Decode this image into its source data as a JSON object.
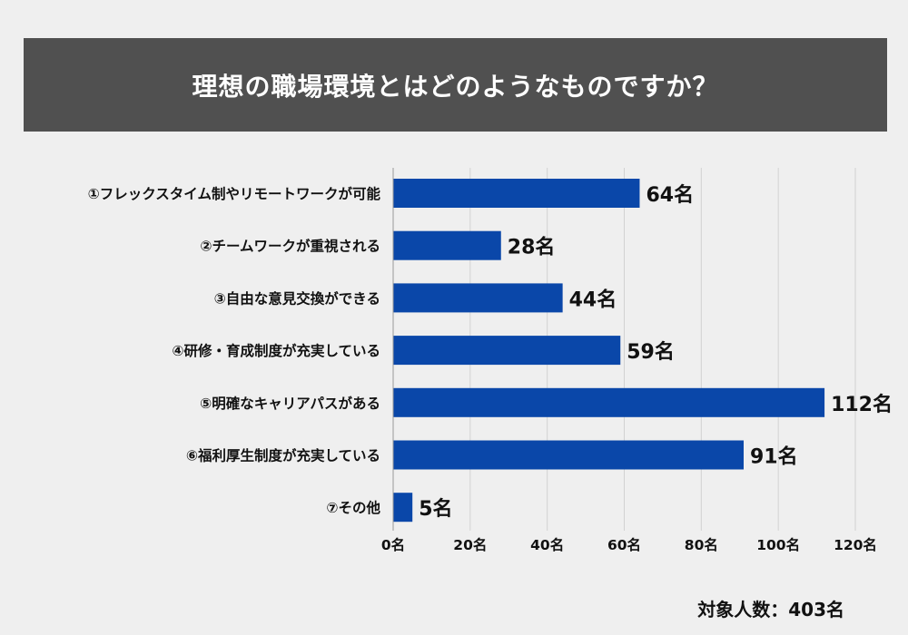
{
  "header": {
    "title": "理想の職場環境とはどのようなものですか？"
  },
  "footer": {
    "respondents": "対象人数：403名"
  },
  "colors": {
    "bar": "#0a47a9",
    "grid": "#d2d2d2",
    "title_bg": "#505050",
    "background": "#efefef"
  },
  "chart_data": {
    "type": "bar",
    "orientation": "horizontal",
    "title": "理想の職場環境とはどのようなものですか？",
    "unit": "名",
    "categories": [
      "①フレックスタイム制やリモートワークが可能",
      "②チームワークが重視される",
      "③自由な意見交換ができる",
      "④研修・育成制度が充実している",
      "⑤明確なキャリアパスがある",
      "⑥福利厚生制度が充実している",
      "⑦その他"
    ],
    "values": [
      64,
      28,
      44,
      59,
      112,
      91,
      5
    ],
    "value_labels": [
      "64名",
      "28名",
      "44名",
      "59名",
      "112名",
      "91名",
      "5名"
    ],
    "xlim": [
      0,
      120
    ],
    "x_ticks": [
      0,
      20,
      40,
      60,
      80,
      100,
      120
    ],
    "x_tick_labels": [
      "0名",
      "20名",
      "40名",
      "60名",
      "80名",
      "100名",
      "120名"
    ],
    "grid": true,
    "total": "対象人数：403名"
  }
}
